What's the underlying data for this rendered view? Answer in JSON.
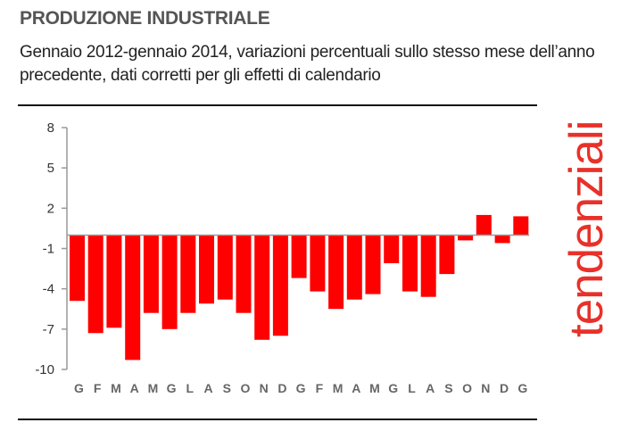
{
  "header": {
    "title": "PRODUZIONE INDUSTRIALE",
    "subtitle": "Gennaio 2012-gennaio 2014, variazioni percentuali sullo stesso mese dell’anno precedente, dati corretti per gli effetti di calendario"
  },
  "side_label": "tendenziali",
  "colors": {
    "bars": "#ff0000",
    "side_label": "#e8312a",
    "axis": "#999999"
  },
  "chart_data": {
    "type": "bar",
    "categories": [
      "G",
      "F",
      "M",
      "A",
      "M",
      "G",
      "L",
      "A",
      "S",
      "O",
      "N",
      "D",
      "G",
      "F",
      "M",
      "A",
      "M",
      "G",
      "L",
      "A",
      "S",
      "O",
      "N",
      "D",
      "G"
    ],
    "values": [
      -4.9,
      -7.3,
      -6.9,
      -9.3,
      -5.8,
      -7.0,
      -5.8,
      -5.1,
      -4.8,
      -5.8,
      -7.8,
      -7.5,
      -3.2,
      -4.2,
      -5.5,
      -4.8,
      -4.4,
      -2.1,
      -4.2,
      -4.6,
      -2.9,
      -0.4,
      1.5,
      -0.6,
      1.4
    ],
    "yticks": [
      8,
      5,
      2,
      -1,
      -4,
      -7,
      -10
    ],
    "ylim": [
      -10,
      8
    ],
    "baseline": 0,
    "grid": false,
    "title": "",
    "xlabel": "",
    "ylabel": ""
  }
}
